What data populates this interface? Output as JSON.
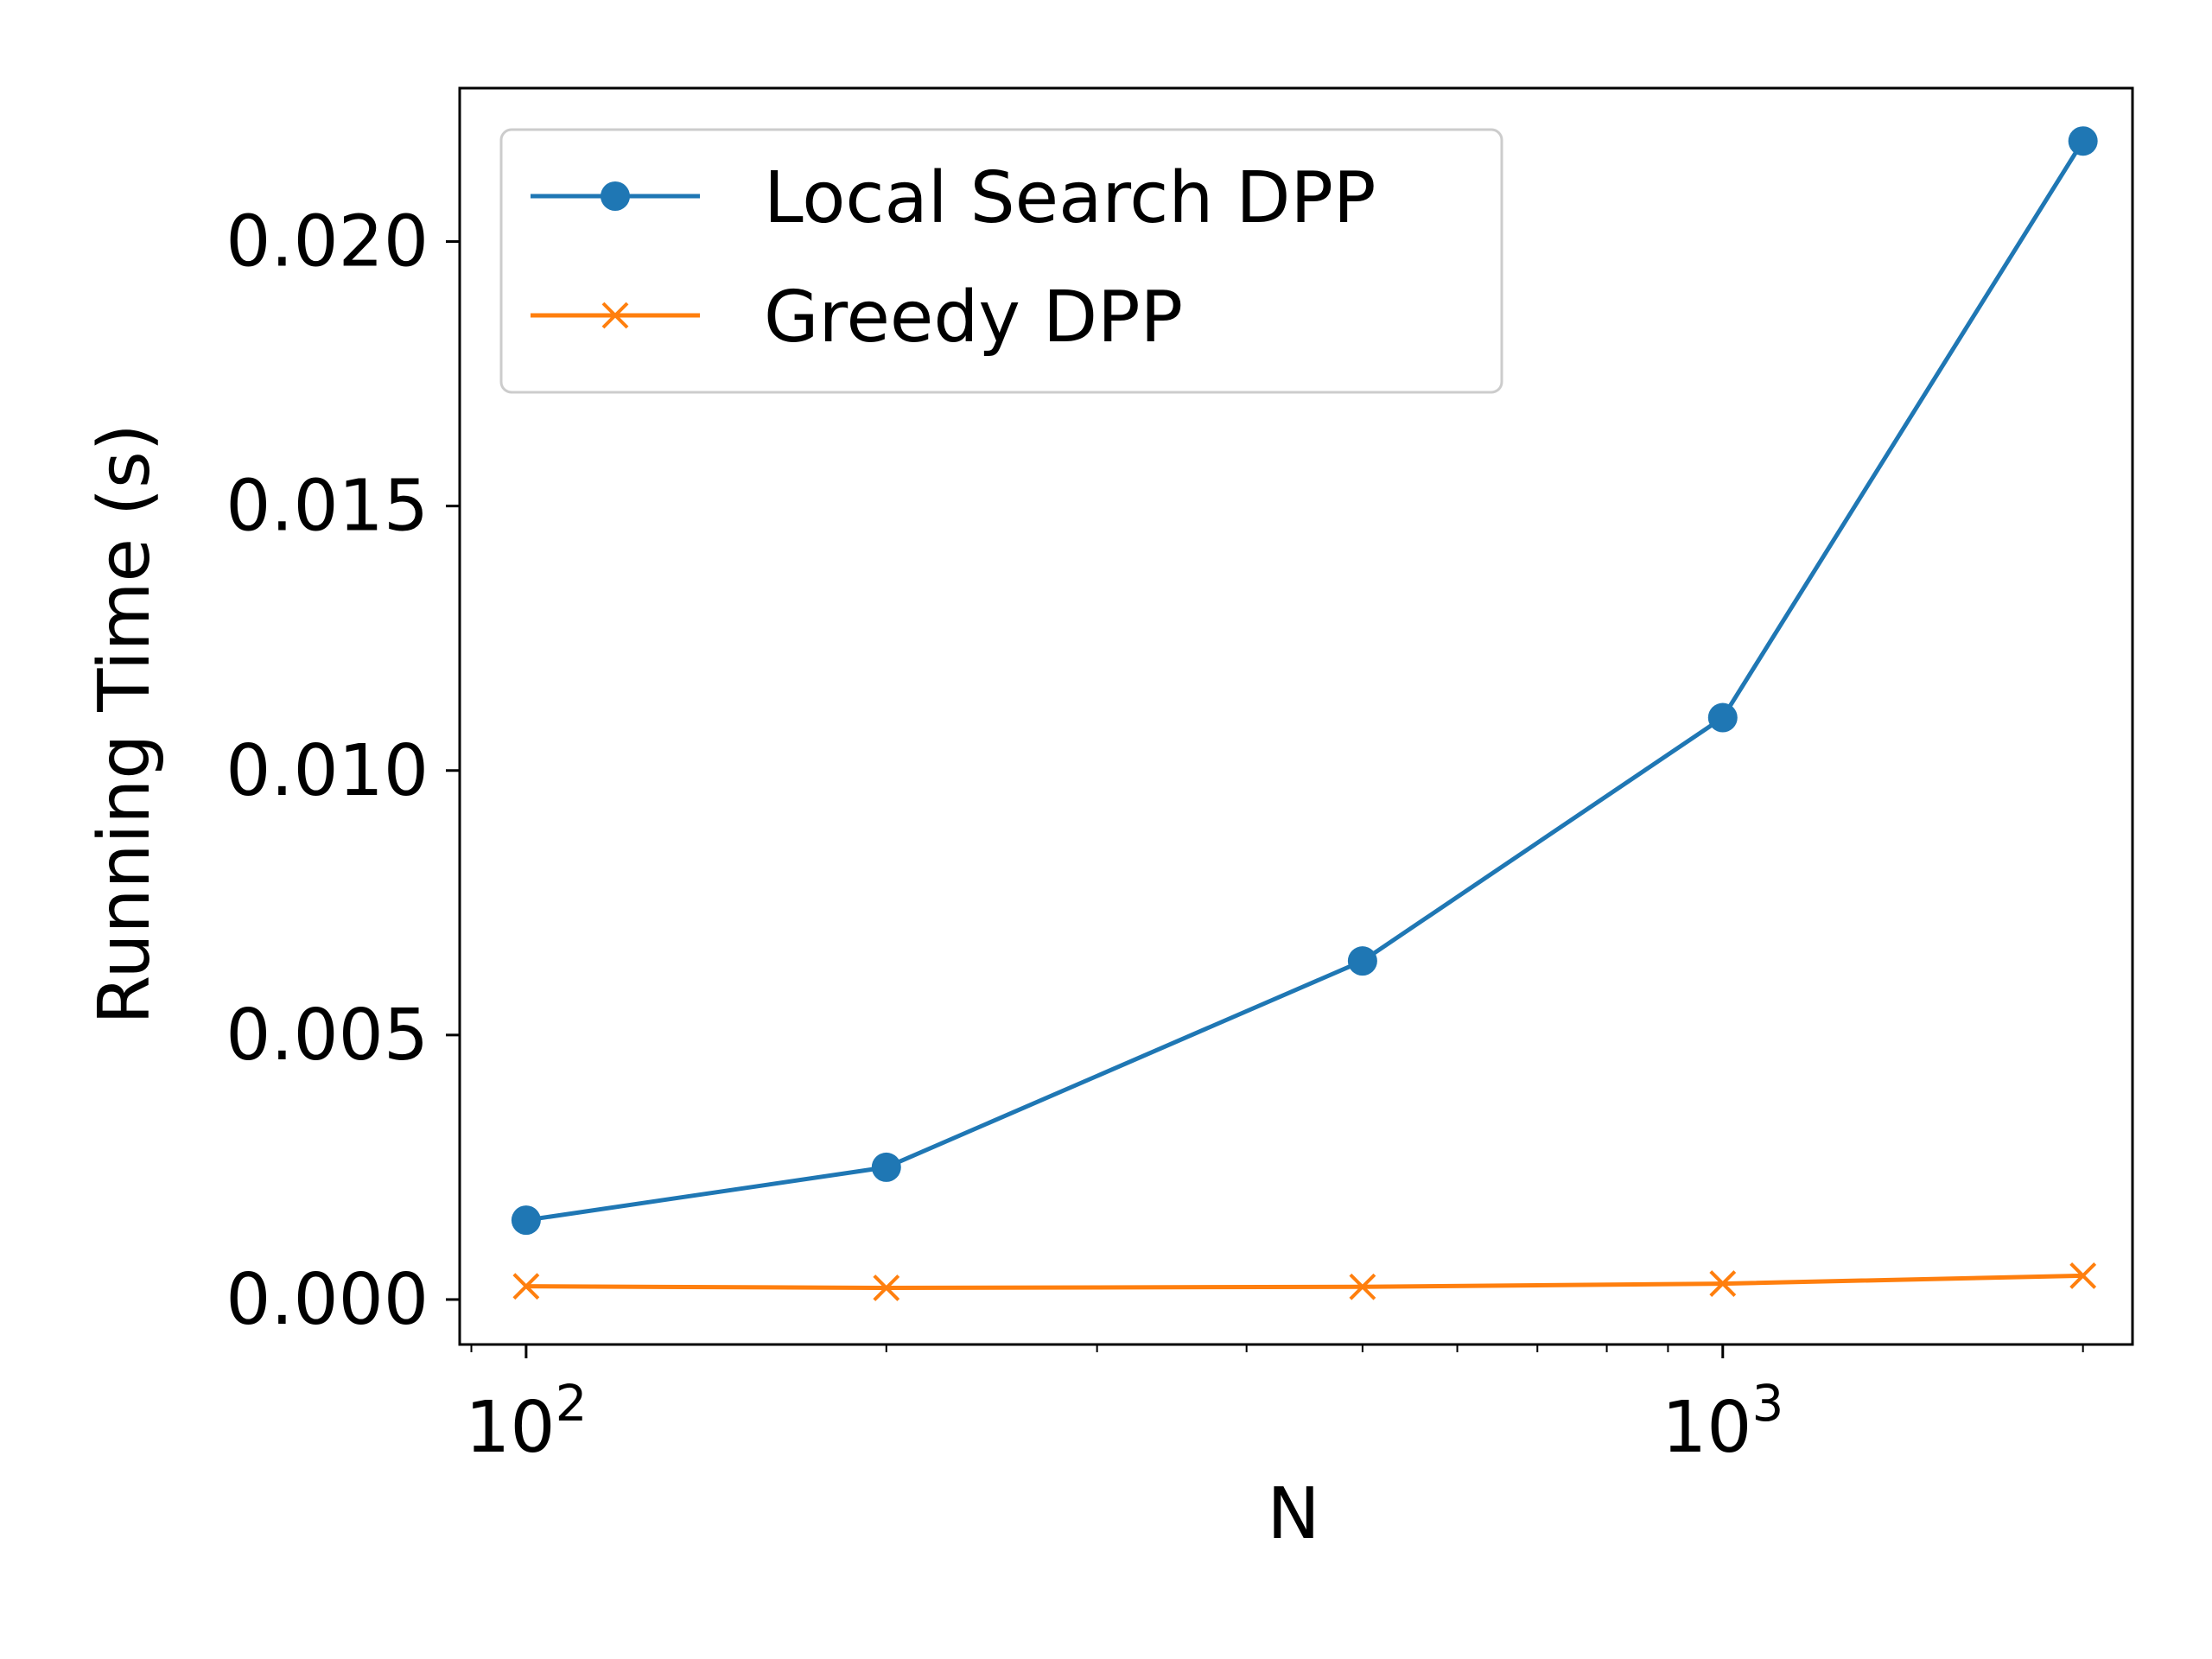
{
  "chart_data": {
    "type": "line",
    "title": "",
    "xlabel": "N",
    "ylabel": "Running Time (s)",
    "xscale": "log",
    "xlim": [
      88,
      2200
    ],
    "ylim": [
      -0.00085,
      0.0229
    ],
    "x_ticks": [
      {
        "value": 100,
        "base": "10",
        "exp": "2"
      },
      {
        "value": 1000,
        "base": "10",
        "exp": "3"
      }
    ],
    "y_ticks": [
      {
        "value": 0.0,
        "label": "0.000"
      },
      {
        "value": 0.005,
        "label": "0.005"
      },
      {
        "value": 0.01,
        "label": "0.010"
      },
      {
        "value": 0.015,
        "label": "0.015"
      },
      {
        "value": 0.02,
        "label": "0.020"
      }
    ],
    "grid": false,
    "legend_position": "top-left",
    "series": [
      {
        "name": "Local Search DPP",
        "color": "#1f77b4",
        "marker": "circle",
        "x": [
          100,
          200,
          500,
          1000,
          2000
        ],
        "y": [
          0.0015,
          0.0025,
          0.0064,
          0.011,
          0.0219
        ]
      },
      {
        "name": "Greedy DPP",
        "color": "#ff7f0e",
        "marker": "x",
        "x": [
          100,
          200,
          500,
          1000,
          2000
        ],
        "y": [
          0.00025,
          0.00022,
          0.00024,
          0.0003,
          0.00045
        ]
      }
    ]
  }
}
